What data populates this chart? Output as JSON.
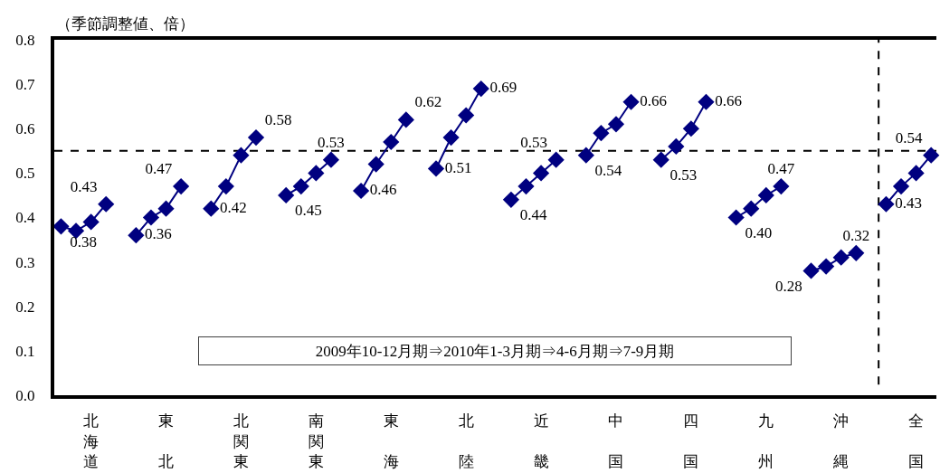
{
  "chart_data": {
    "type": "line",
    "ylabel": "（季節調整値、倍）",
    "annotations": [
      "2009年10-12月期⇒2010年1-3月期⇒4-6月期⇒7-9月期"
    ],
    "categories": [
      null,
      null,
      "北海道",
      null,
      null,
      null,
      null,
      "東北",
      null,
      null,
      null,
      null,
      "北関東",
      null,
      null,
      null,
      null,
      "南関東",
      null,
      null,
      null,
      null,
      "東海",
      null,
      null,
      null,
      null,
      "北陸",
      null,
      null,
      null,
      null,
      "近畿",
      null,
      null,
      null,
      null,
      "中国",
      null,
      null,
      null,
      null,
      "四国",
      null,
      null,
      null,
      null,
      "九州",
      null,
      null,
      null,
      null,
      "沖縄",
      null,
      null,
      null,
      null,
      "全国",
      null
    ],
    "ylim": [
      0,
      0.8
    ],
    "yticks": [
      {
        "value": 0,
        "label": "0.0"
      },
      0.1,
      0.2,
      0.3,
      0.4,
      0.5,
      0.6,
      0.7,
      0.8
    ],
    "series": [
      {
        "color": "#000080",
        "values": [
          0.38,
          0.37,
          0.39,
          0.43,
          null,
          0.36,
          0.4,
          0.42,
          0.47,
          null,
          0.42,
          0.47,
          0.54,
          0.58,
          null,
          0.45,
          0.47,
          0.5,
          0.53,
          null,
          0.46,
          0.52,
          0.57,
          0.62,
          null,
          0.51,
          0.58,
          0.63,
          0.69,
          null,
          0.44,
          0.47,
          0.5,
          0.53,
          null,
          0.54,
          0.59,
          0.61,
          0.66,
          null,
          0.53,
          0.56,
          0.6,
          0.66,
          null,
          0.4,
          0.42,
          0.45,
          0.47,
          null,
          0.28,
          0.29,
          0.31,
          0.32,
          null,
          0.43,
          0.47,
          0.5,
          0.54
        ],
        "value_labels": [
          "0.38",
          null,
          null,
          "0.43",
          null,
          "0.36",
          null,
          null,
          "0.47",
          null,
          "0.42",
          null,
          null,
          "0.58",
          null,
          "0.45",
          null,
          null,
          "0.53",
          null,
          "0.46",
          null,
          null,
          "0.62",
          null,
          "0.51",
          null,
          null,
          "0.69",
          null,
          "0.44",
          null,
          null,
          "0.53",
          null,
          "0.54",
          null,
          null,
          "0.66",
          null,
          "0.53",
          null,
          null,
          "0.66",
          null,
          "0.40",
          null,
          null,
          "0.47",
          null,
          "0.28",
          null,
          null,
          "0.32",
          null,
          "0.43",
          null,
          null,
          "0.54"
        ]
      }
    ],
    "ref_lines": [
      {
        "axis": "y",
        "value": 0.55,
        "color": "#000000",
        "line_style": "dashed"
      }
    ],
    "grid": false,
    "marker": "diamond",
    "line_style": "solid"
  }
}
